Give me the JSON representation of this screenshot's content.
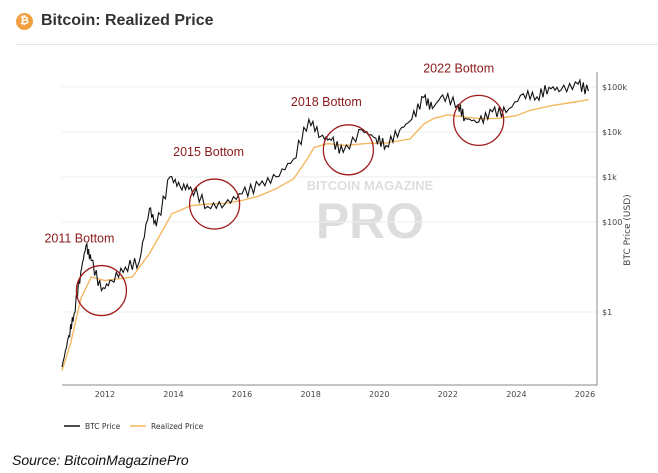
{
  "header": {
    "title": "Bitcoin: Realized Price",
    "icon": "bitcoin-icon"
  },
  "source": "Source: BitcoinMagazinePro",
  "watermark": {
    "top": "BITCOIN MAGAZINE",
    "bottom": "PRO"
  },
  "colors": {
    "btc": "#111111",
    "realized": "#f5b860",
    "annotation": "#a01c1c"
  },
  "chart_data": {
    "type": "line",
    "title": "Bitcoin: Realized Price",
    "xlabel": "",
    "ylabel": "BTC Price (USD)",
    "yscale": "log",
    "xlim": [
      2010.75,
      2026.35
    ],
    "ylim_log10": [
      -1.62,
      5.33
    ],
    "x_ticks": [
      2012,
      2014,
      2016,
      2018,
      2020,
      2022,
      2024,
      2026
    ],
    "x_tick_labels": [
      "2012",
      "2014",
      "2016",
      "2018",
      "2020",
      "2022",
      "2024",
      "2026"
    ],
    "y_ticks": [
      1,
      100,
      1000,
      10000,
      100000
    ],
    "y_tick_labels": [
      "$1",
      "$100",
      "$1k",
      "$10k",
      "$100k"
    ],
    "legend": {
      "placement": "bottom-left",
      "entries": [
        "BTC Price",
        "Realized Price"
      ]
    },
    "series": [
      {
        "name": "BTC Price",
        "x": [
          2010.75,
          2010.95,
          2011.1,
          2011.3,
          2011.45,
          2011.6,
          2011.9,
          2012.2,
          2012.6,
          2013.0,
          2013.3,
          2013.5,
          2013.9,
          2014.2,
          2014.5,
          2015.0,
          2015.5,
          2016.0,
          2016.5,
          2017.0,
          2017.5,
          2017.95,
          2018.3,
          2018.6,
          2018.95,
          2019.5,
          2019.9,
          2020.2,
          2020.6,
          2020.95,
          2021.3,
          2021.55,
          2021.85,
          2022.3,
          2022.5,
          2022.9,
          2023.3,
          2023.7,
          2024.2,
          2024.6,
          2024.95,
          2025.3,
          2025.8,
          2026.1
        ],
        "y": [
          0.06,
          0.3,
          0.9,
          8,
          30,
          14,
          3,
          5,
          10,
          13,
          200,
          80,
          1000,
          600,
          600,
          220,
          250,
          420,
          650,
          1000,
          2500,
          19000,
          8000,
          6500,
          3500,
          11000,
          7300,
          5000,
          11000,
          19000,
          58000,
          33000,
          66000,
          40000,
          20000,
          16500,
          28000,
          27000,
          70000,
          60000,
          98000,
          85000,
          115000,
          80000
        ]
      },
      {
        "name": "Realized Price",
        "x": [
          2010.75,
          2011.0,
          2011.3,
          2011.6,
          2012.0,
          2012.8,
          2013.3,
          2013.6,
          2013.95,
          2014.5,
          2015.0,
          2015.5,
          2016.0,
          2016.5,
          2017.0,
          2017.5,
          2017.9,
          2018.1,
          2018.5,
          2019.0,
          2019.6,
          2020.2,
          2020.9,
          2021.3,
          2021.6,
          2022.0,
          2022.6,
          2022.95,
          2023.5,
          2024.0,
          2024.4,
          2025.0,
          2025.6,
          2026.1
        ],
        "y": [
          0.05,
          0.2,
          2,
          6,
          5,
          6,
          20,
          50,
          150,
          230,
          250,
          260,
          300,
          380,
          550,
          900,
          2500,
          4500,
          5500,
          5000,
          5500,
          5700,
          7000,
          15000,
          20000,
          24000,
          21000,
          19500,
          20000,
          23000,
          30000,
          38000,
          45000,
          52000
        ]
      }
    ],
    "annotations": [
      {
        "text": "2011 Bottom",
        "x": 2011.9,
        "y": 3
      },
      {
        "text": "2015 Bottom",
        "x": 2015.2,
        "y": 250
      },
      {
        "text": "2018 Bottom",
        "x": 2019.1,
        "y": 4000
      },
      {
        "text": "2022 Bottom",
        "x": 2022.9,
        "y": 18000
      }
    ]
  }
}
